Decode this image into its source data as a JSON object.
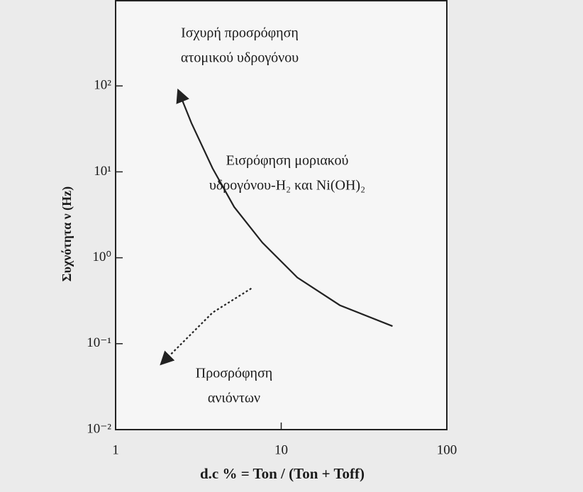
{
  "chart_data": {
    "type": "line",
    "ylabel": "Συχνότητα ν (Hz)",
    "xlabel": "d.c % = Ton / (Ton + Toff)",
    "xscale": "log",
    "yscale": "log",
    "xlim": [
      1,
      100
    ],
    "ylim": [
      0.01,
      1000
    ],
    "xticks": [
      1,
      10,
      100
    ],
    "yticks": [
      {
        "value": 0.01,
        "label": "10⁻²"
      },
      {
        "value": 0.1,
        "label": "10⁻¹"
      },
      {
        "value": 1,
        "label": "10⁰"
      },
      {
        "value": 10,
        "label": "10¹"
      },
      {
        "value": 100,
        "label": "10²"
      }
    ],
    "series": [
      {
        "color": "#222222",
        "line_style": "solid",
        "arrow": "start",
        "x": [
          2.4,
          2.87,
          3.85,
          5.2,
          7.7,
          12.5,
          22.6,
          47
        ],
        "values": [
          87,
          37,
          11,
          3.9,
          1.5,
          0.59,
          0.28,
          0.16
        ]
      },
      {
        "color": "#222222",
        "line_style": "dotted",
        "arrow": "end",
        "x": [
          6.6,
          3.85,
          2.6,
          1.9
        ],
        "values": [
          0.44,
          0.23,
          0.108,
          0.059
        ]
      }
    ],
    "annotations": [
      [
        "Ισχυρή προσρόφηση",
        "ατομικού υδρογόνου"
      ],
      [
        "Εισρόφηση μοριακού",
        "υδρογόνου-H₂ και Ni(OH)₂"
      ],
      [
        "Προσρόφηση",
        "ανιόντων"
      ]
    ]
  }
}
